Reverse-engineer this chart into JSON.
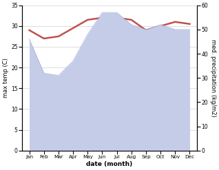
{
  "months": [
    "Jan",
    "Feb",
    "Mar",
    "Apr",
    "May",
    "Jun",
    "Jul",
    "Aug",
    "Sep",
    "Oct",
    "Nov",
    "Dec"
  ],
  "x": [
    0,
    1,
    2,
    3,
    4,
    5,
    6,
    7,
    8,
    9,
    10,
    11
  ],
  "temp": [
    29,
    27,
    27.5,
    29.5,
    31.5,
    32,
    32,
    31.5,
    29,
    30,
    31,
    30.5
  ],
  "precip": [
    46,
    32,
    31,
    37,
    48,
    57,
    57,
    52,
    50,
    52,
    50,
    50
  ],
  "temp_color": "#c0504d",
  "precip_fill_color": "#c5cce8",
  "precip_line_color": "#9baad4",
  "ylim_left": [
    0,
    35
  ],
  "ylim_right": [
    0,
    60
  ],
  "xlabel": "date (month)",
  "ylabel_left": "max temp (C)",
  "ylabel_right": "med. precipitation (kg/m2)",
  "bg_color": "#ffffff",
  "grid_color": "#d0d0d0",
  "yticks_left": [
    0,
    5,
    10,
    15,
    20,
    25,
    30,
    35
  ],
  "yticks_right": [
    0,
    10,
    20,
    30,
    40,
    50,
    60
  ]
}
